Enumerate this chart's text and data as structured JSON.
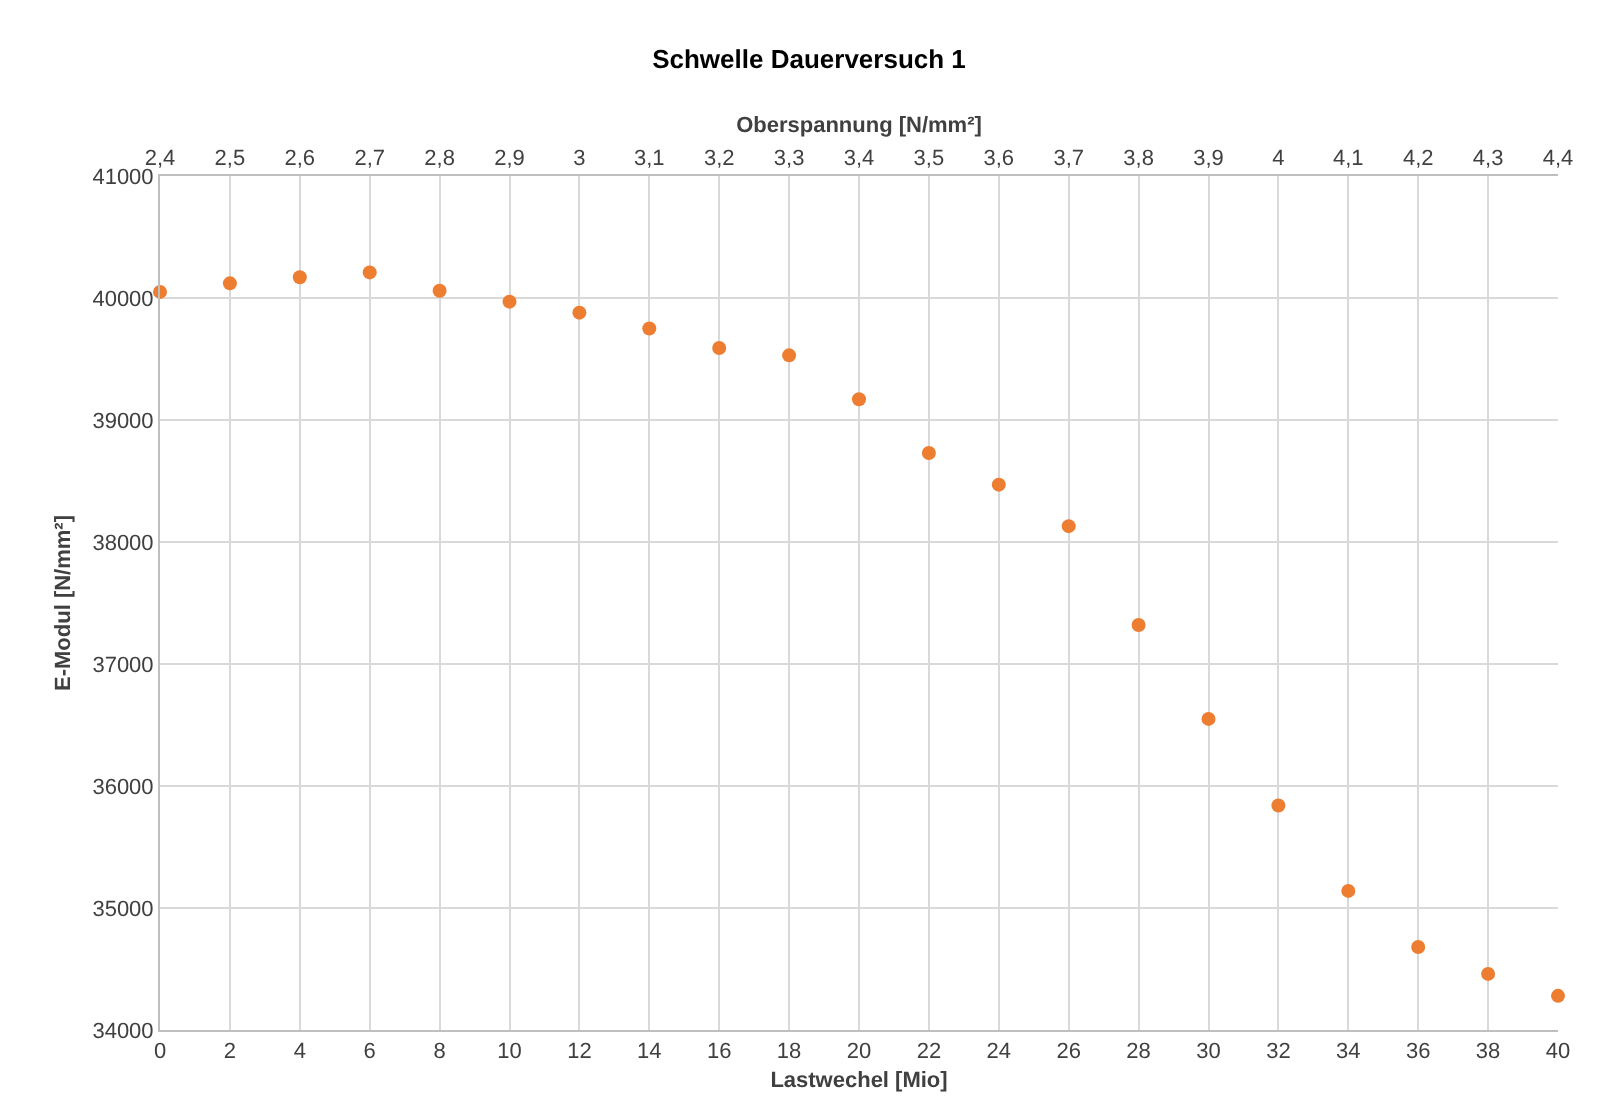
{
  "chart_data": {
    "type": "scatter",
    "title": "Schwelle Dauerversuch 1",
    "xlabel": "Lastwechel [Mio]",
    "ylabel": "E-Modul [N/mm²]",
    "x2label": "Oberspannung [N/mm²]",
    "x": [
      0,
      2,
      4,
      6,
      8,
      10,
      12,
      14,
      16,
      18,
      20,
      22,
      24,
      26,
      28,
      30,
      32,
      34,
      36,
      38,
      40
    ],
    "series": [
      {
        "color": "#ed7d31",
        "values": [
          40050,
          40120,
          40170,
          40210,
          40060,
          39970,
          39880,
          39750,
          39590,
          39530,
          39170,
          38730,
          38470,
          38130,
          37320,
          36550,
          35840,
          35140,
          34680,
          34460,
          34280
        ]
      }
    ],
    "xlim": [
      0,
      40
    ],
    "xticks": [
      0,
      2,
      4,
      6,
      8,
      10,
      12,
      14,
      16,
      18,
      20,
      22,
      24,
      26,
      28,
      30,
      32,
      34,
      36,
      38,
      40
    ],
    "ylim": [
      34000,
      41000
    ],
    "yticks": [
      34000,
      35000,
      36000,
      37000,
      38000,
      39000,
      40000,
      41000
    ],
    "x2lim": [
      2.4,
      4.4
    ],
    "x2ticks": [
      {
        "value": 2.4,
        "label": "2,4"
      },
      {
        "value": 2.5,
        "label": "2,5"
      },
      {
        "value": 2.6,
        "label": "2,6"
      },
      {
        "value": 2.7,
        "label": "2,7"
      },
      {
        "value": 2.8,
        "label": "2,8"
      },
      {
        "value": 2.9,
        "label": "2,9"
      },
      3,
      {
        "value": 3.1,
        "label": "3,1"
      },
      {
        "value": 3.2,
        "label": "3,2"
      },
      {
        "value": 3.3,
        "label": "3,3"
      },
      {
        "value": 3.4,
        "label": "3,4"
      },
      {
        "value": 3.5,
        "label": "3,5"
      },
      {
        "value": 3.6,
        "label": "3,6"
      },
      {
        "value": 3.7,
        "label": "3,7"
      },
      {
        "value": 3.8,
        "label": "3,8"
      },
      {
        "value": 3.9,
        "label": "3,9"
      },
      4,
      {
        "value": 4.1,
        "label": "4,1"
      },
      {
        "value": 4.2,
        "label": "4,2"
      },
      {
        "value": 4.3,
        "label": "4,3"
      },
      {
        "value": 4.4,
        "label": "4,4"
      }
    ],
    "grid": true,
    "marker": "circle"
  }
}
